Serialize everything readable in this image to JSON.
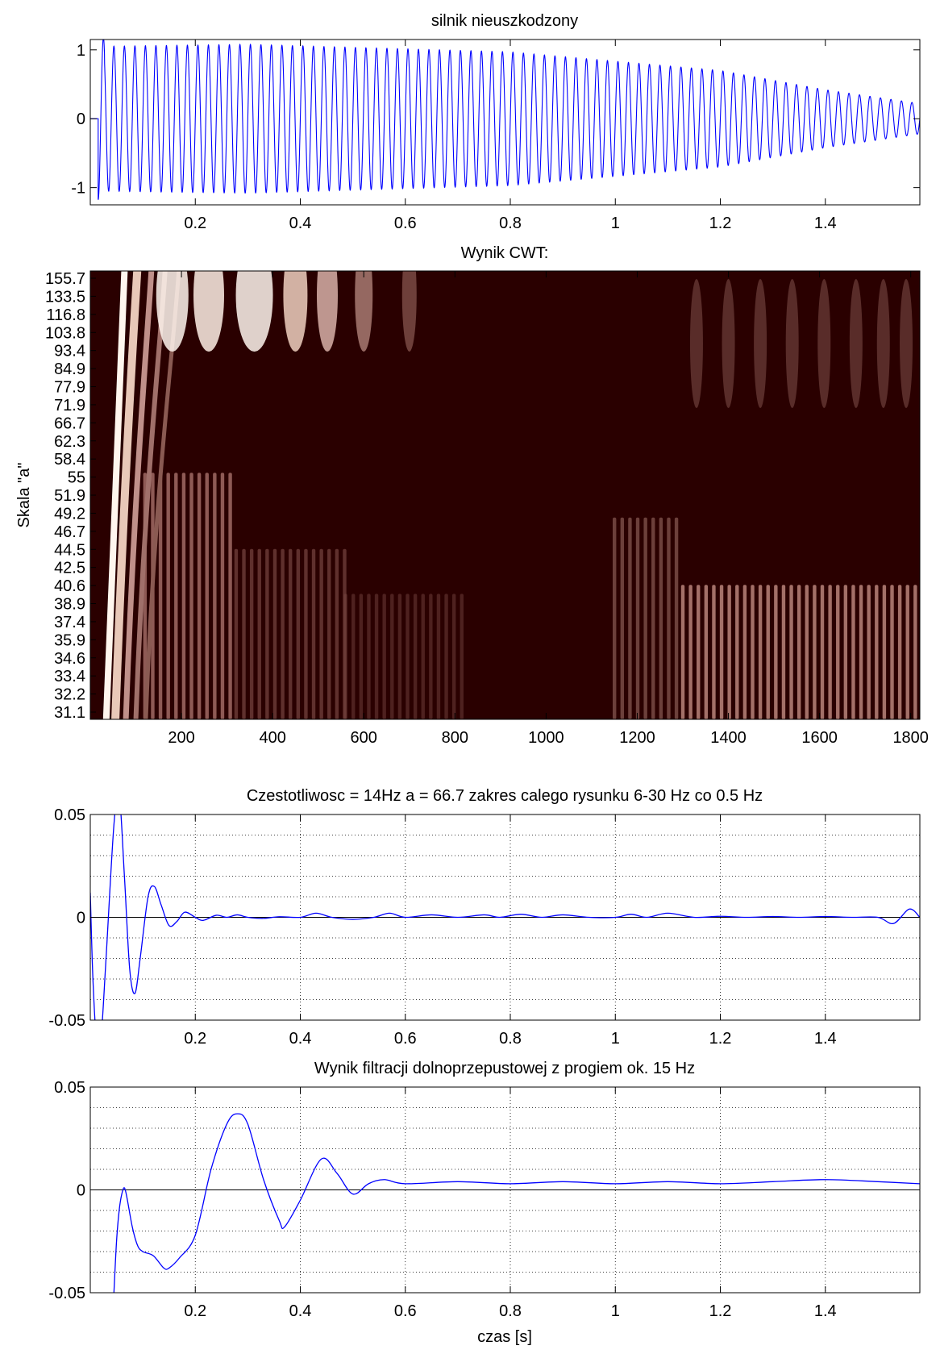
{
  "chart_data": [
    {
      "type": "line",
      "title": "silnik nieuszkodzony",
      "xlabel": "",
      "ylabel": "",
      "xlim": [
        0,
        1.58
      ],
      "ylim": [
        -1.25,
        1.15
      ],
      "xticks": [
        0.2,
        0.4,
        0.6,
        0.8,
        1,
        1.2,
        1.4
      ],
      "xtick_labels": [
        "0.2",
        "0.4",
        "0.6",
        "0.8",
        "1",
        "1.2",
        "1.4"
      ],
      "yticks": [
        1,
        0,
        -1
      ],
      "ytick_labels": [
        "1",
        "0",
        "-1"
      ],
      "grid": false,
      "series": [
        {
          "color": "#0000ff",
          "kind": "decaying-oscillation",
          "start": 0.015,
          "frequency_hz": 50,
          "envelope": {
            "x": [
              0.015,
              0.3,
              0.8,
              1.2,
              1.4,
              1.58
            ],
            "amplitude": [
              1.05,
              1.08,
              0.97,
              0.7,
              0.42,
              0.22
            ]
          }
        }
      ]
    },
    {
      "type": "heatmap",
      "title": "Wynik CWT:",
      "xlabel": "",
      "ylabel": "Skala \"a\"",
      "xlim": [
        0,
        1820
      ],
      "xticks": [
        200,
        400,
        600,
        800,
        1000,
        1200,
        1400,
        1600,
        1800
      ],
      "xtick_labels": [
        "200",
        "400",
        "600",
        "800",
        "1000",
        "1200",
        "1400",
        "1600",
        "1800"
      ],
      "ytick_labels": [
        "155.7",
        "133.5",
        "116.8",
        "103.8",
        "93.4",
        "84.9",
        "77.9",
        "71.9",
        "66.7",
        "62.3",
        "58.4",
        "55",
        "51.9",
        "49.2",
        "46.7",
        "44.5",
        "42.5",
        "40.6",
        "38.9",
        "37.4",
        "35.9",
        "34.6",
        "33.4",
        "32.2",
        "31.1"
      ],
      "colormap": [
        "#2a0000",
        "#5a2a22",
        "#a0706a",
        "#d8b0a8",
        "#fff6ee"
      ]
    },
    {
      "type": "line",
      "title": "Czestotliwosc = 14Hz  a = 66.7 zakres calego rysunku 6-30 Hz co 0.5 Hz",
      "xlabel": "",
      "ylabel": "",
      "xlim": [
        0,
        1.58
      ],
      "ylim": [
        -0.05,
        0.05
      ],
      "xticks": [
        0.2,
        0.4,
        0.6,
        0.8,
        1,
        1.2,
        1.4
      ],
      "xtick_labels": [
        "0.2",
        "0.4",
        "0.6",
        "0.8",
        "1",
        "1.2",
        "1.4"
      ],
      "yticks": [
        0.05,
        0,
        -0.05
      ],
      "ytick_labels": [
        "0.05",
        "0",
        "-0.05"
      ],
      "grid": true,
      "series": [
        {
          "color": "#0000ff",
          "x": [
            0,
            0.005,
            0.012,
            0.02,
            0.03,
            0.045,
            0.055,
            0.065,
            0.075,
            0.085,
            0.095,
            0.11,
            0.122,
            0.135,
            0.15,
            0.165,
            0.18,
            0.2,
            0.215,
            0.24,
            0.26,
            0.28,
            0.3,
            0.33,
            0.36,
            0.4,
            0.43,
            0.46,
            0.5,
            0.54,
            0.57,
            0.6,
            0.65,
            0.7,
            0.75,
            0.78,
            0.82,
            0.86,
            0.9,
            0.95,
            1.0,
            1.03,
            1.06,
            1.1,
            1.15,
            1.2,
            1.25,
            1.3,
            1.35,
            1.4,
            1.45,
            1.5,
            1.53,
            1.56,
            1.58
          ],
          "y": [
            0.012,
            -0.03,
            -0.06,
            -0.06,
            -0.02,
            0.045,
            0.06,
            0.02,
            -0.025,
            -0.037,
            -0.02,
            0.01,
            0.015,
            0.006,
            -0.004,
            -0.002,
            0.0025,
            0.0,
            -0.0015,
            0.001,
            0.0,
            0.0012,
            0.0,
            -0.0005,
            0.0003,
            0.0,
            0.002,
            0.0,
            -0.001,
            0.0,
            0.002,
            0.0,
            0.0012,
            0.0,
            0.0012,
            0.0,
            0.0015,
            0.0,
            0.0012,
            0.0,
            0.0,
            0.0015,
            0.0,
            0.002,
            0.0,
            0.0005,
            0.0,
            0.0004,
            0.0,
            0.0004,
            0.0,
            0.0,
            -0.003,
            0.004,
            0.0
          ]
        }
      ]
    },
    {
      "type": "line",
      "title": "Wynik filtracji dolnoprzepustowej z progiem ok. 15 Hz",
      "xlabel": "czas [s]",
      "ylabel": "",
      "xlim": [
        0,
        1.58
      ],
      "ylim": [
        -0.05,
        0.05
      ],
      "xticks": [
        0.2,
        0.4,
        0.6,
        0.8,
        1,
        1.2,
        1.4
      ],
      "xtick_labels": [
        "0.2",
        "0.4",
        "0.6",
        "0.8",
        "1",
        "1.2",
        "1.4"
      ],
      "yticks": [
        0.05,
        0,
        -0.05
      ],
      "ytick_labels": [
        "0.05",
        "0",
        "-0.05"
      ],
      "grid": true,
      "series": [
        {
          "color": "#0000ff",
          "x": [
            0.045,
            0.05,
            0.055,
            0.06,
            0.065,
            0.07,
            0.08,
            0.09,
            0.1,
            0.12,
            0.14,
            0.15,
            0.17,
            0.2,
            0.23,
            0.26,
            0.28,
            0.3,
            0.33,
            0.36,
            0.37,
            0.4,
            0.44,
            0.47,
            0.5,
            0.53,
            0.56,
            0.6,
            0.7,
            0.8,
            0.9,
            1.0,
            1.1,
            1.2,
            1.3,
            1.4,
            1.5,
            1.58
          ],
          "y": [
            -0.05,
            -0.025,
            -0.01,
            -0.002,
            0.001,
            -0.004,
            -0.018,
            -0.027,
            -0.03,
            -0.032,
            -0.038,
            -0.038,
            -0.033,
            -0.022,
            0.01,
            0.032,
            0.037,
            0.032,
            0.005,
            -0.015,
            -0.018,
            -0.005,
            0.015,
            0.008,
            -0.002,
            0.003,
            0.005,
            0.003,
            0.004,
            0.003,
            0.004,
            0.003,
            0.004,
            0.003,
            0.004,
            0.005,
            0.004,
            0.003
          ]
        }
      ]
    }
  ]
}
